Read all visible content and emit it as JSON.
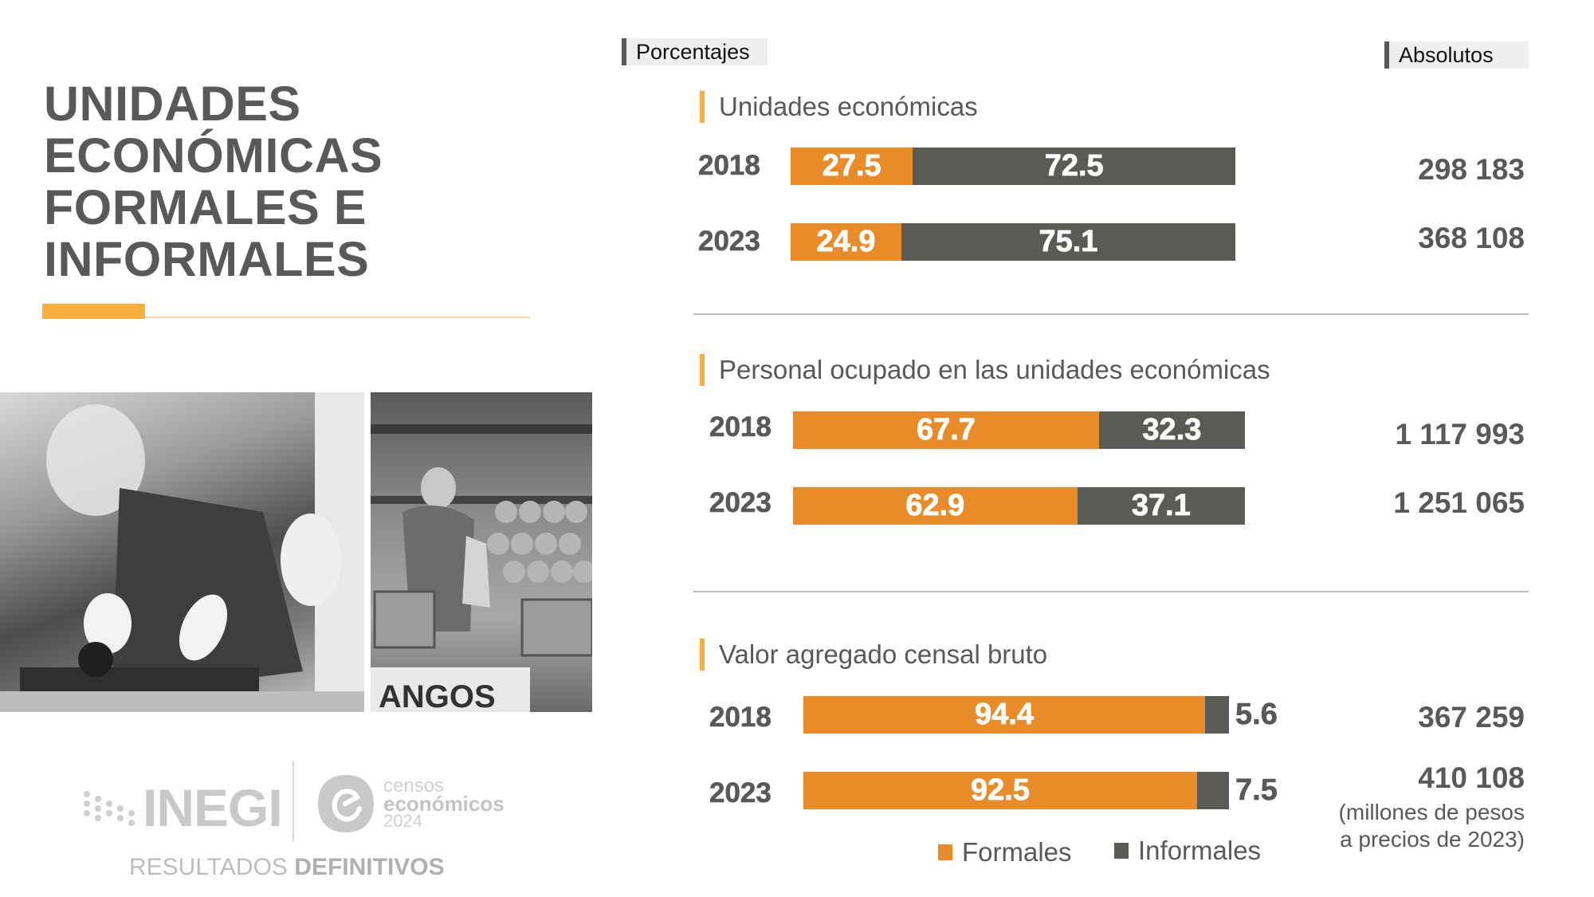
{
  "title": {
    "lines": [
      "UNIDADES",
      "ECONÓMICAS",
      "FORMALES E",
      "INFORMALES"
    ]
  },
  "tags": {
    "percentages": "Porcentajes",
    "absolutes": "Absolutos"
  },
  "colors": {
    "formales": "#e98b28",
    "informales": "#5b5b56",
    "accent": "#fbae40",
    "text": "#595959"
  },
  "chart_data": {
    "type": "bar",
    "orientation": "horizontal",
    "stacked": true,
    "units": "percent",
    "xlim": [
      0,
      100
    ],
    "legend": {
      "position": "bottom",
      "entries": [
        "Formales",
        "Informales"
      ]
    },
    "series_names": [
      "Formales",
      "Informales"
    ],
    "panels": [
      {
        "title": "Unidades económicas",
        "categories": [
          "2018",
          "2023"
        ],
        "series": [
          {
            "name": "Formales",
            "values": [
              27.5,
              24.9
            ]
          },
          {
            "name": "Informales",
            "values": [
              72.5,
              75.1
            ]
          }
        ],
        "absolutes": [
          "298 183",
          "368 108"
        ]
      },
      {
        "title": "Personal ocupado en las unidades económicas",
        "categories": [
          "2018",
          "2023"
        ],
        "series": [
          {
            "name": "Formales",
            "values": [
              67.7,
              62.9
            ]
          },
          {
            "name": "Informales",
            "values": [
              32.3,
              37.1
            ]
          }
        ],
        "absolutes": [
          "1 117 993",
          "1 251 065"
        ]
      },
      {
        "title": "Valor agregado censal bruto",
        "categories": [
          "2018",
          "2023"
        ],
        "series": [
          {
            "name": "Formales",
            "values": [
              94.4,
              92.5
            ]
          },
          {
            "name": "Informales",
            "values": [
              5.6,
              7.5
            ]
          }
        ],
        "absolutes": [
          "367 259",
          "410 108"
        ],
        "absolutes_note": [
          "(millones de pesos",
          "a precios de 2023)"
        ]
      }
    ]
  },
  "legend": {
    "formales": "Formales",
    "informales": "Informales"
  },
  "footer": {
    "inegi": "INEGI",
    "censos_line1": "censos",
    "censos_line2": "económicos",
    "censos_line3": "2024",
    "resultados": "RESULTADOS",
    "definitivos": "DEFINITIVOS"
  },
  "photos": {
    "left": "worker-grinding-metal-photo",
    "right": "fruit-vendor-photo"
  }
}
